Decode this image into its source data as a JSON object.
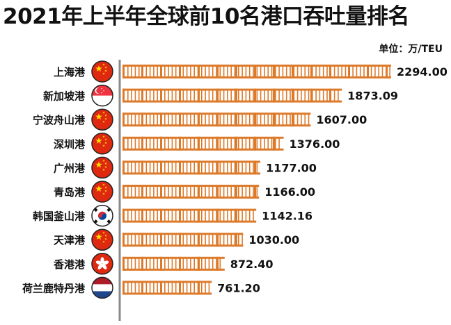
{
  "title": "2021年上半年全球前10名港口吞吐量排名",
  "unit_label": "单位：万/TEU",
  "colors": {
    "bar": "#dd7a2a",
    "rail": "#8a8a8a",
    "china_red": "#de2910",
    "china_yellow": "#ffde00"
  },
  "chart_data": {
    "type": "bar",
    "orientation": "horizontal",
    "title": "2021年上半年全球前10名港口吞吐量排名",
    "unit": "单位：万/TEU",
    "categories": [
      "上海港",
      "新加坡港",
      "宁波舟山港",
      "深圳港",
      "广州港",
      "青岛港",
      "韩国釜山港",
      "天津港",
      "香港港",
      "荷兰鹿特丹港"
    ],
    "values": [
      2294.0,
      1873.09,
      1607.0,
      1376.0,
      1177.0,
      1166.0,
      1142.16,
      1030.0,
      872.4,
      761.2
    ],
    "value_labels": [
      "2294.00",
      "1873.09",
      "1607.00",
      "1376.00",
      "1177.00",
      "1166.00",
      "1142.16",
      "1030.00",
      "872.40",
      "761.20"
    ],
    "flags": [
      "china-flag",
      "singapore-flag",
      "china-flag",
      "china-flag",
      "china-flag",
      "china-flag",
      "south-korea-flag",
      "china-flag",
      "hong-kong-flag",
      "netherlands-flag"
    ],
    "xlim": [
      0,
      2294.0
    ]
  }
}
